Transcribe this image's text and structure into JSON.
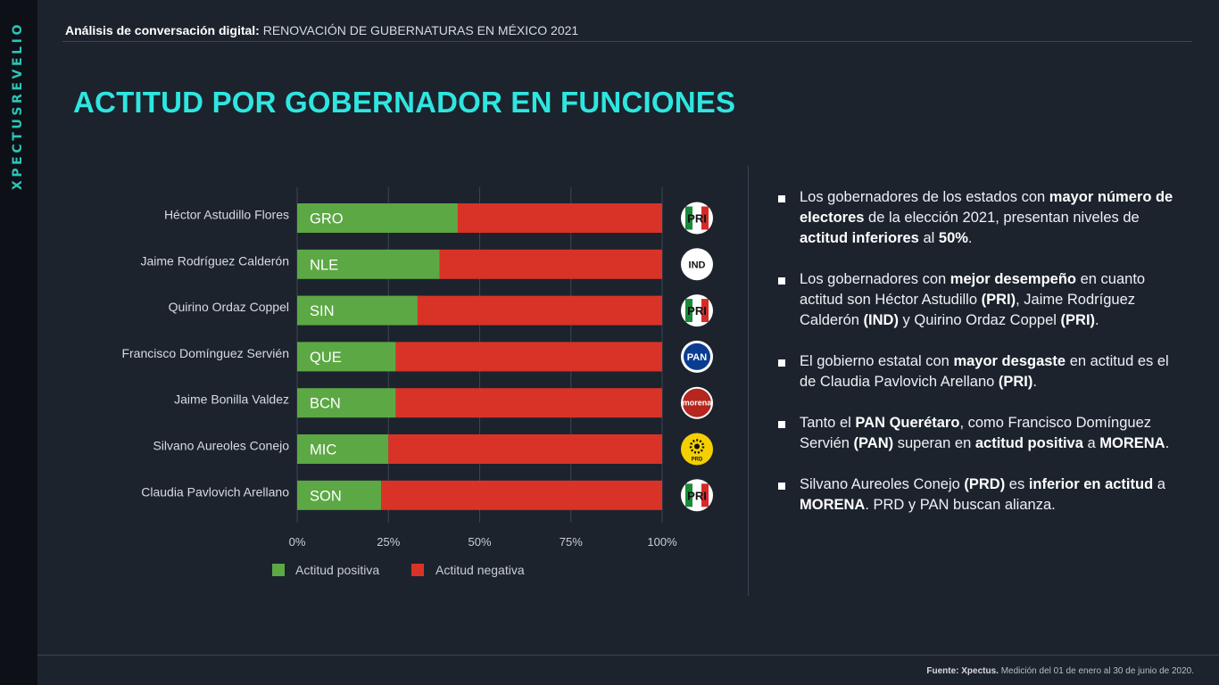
{
  "brand": "XPECTUSREVELIO",
  "header": {
    "bold": "Análisis de conversación digital:",
    "rest": "RENOVACIÓN DE GUBERNATURAS EN MÉXICO 2021"
  },
  "title": "ACTITUD POR GOBERNADOR EN FUNCIONES",
  "chart_data": {
    "type": "bar",
    "orientation": "horizontal",
    "stacked": true,
    "categories": [
      "Héctor Astudillo Flores",
      "Jaime Rodríguez Calderón",
      "Quirino Ordaz Coppel",
      "Francisco Domínguez Servién",
      "Jaime Bonilla Valdez",
      "Silvano Aureoles Conejo",
      "Claudia Pavlovich Arellano"
    ],
    "bar_labels": [
      "GRO",
      "NLE",
      "SIN",
      "QUE",
      "BCN",
      "MIC",
      "SON"
    ],
    "party_badges": [
      "PRI",
      "IND",
      "PRI",
      "PAN",
      "morena",
      "PRD",
      "PRI"
    ],
    "series": [
      {
        "name": "Actitud positiva",
        "color": "#5ca844",
        "values": [
          44,
          39,
          33,
          27,
          27,
          25,
          23
        ]
      },
      {
        "name": "Actitud negativa",
        "color": "#d93327",
        "values": [
          56,
          61,
          67,
          73,
          73,
          75,
          77
        ]
      }
    ],
    "xlim": [
      0,
      100
    ],
    "xticks": [
      "0%",
      "25%",
      "50%",
      "75%",
      "100%"
    ],
    "grid": true,
    "legend_position": "bottom-left"
  },
  "bullets": [
    [
      {
        "t": "Los gobernadores de los estados con "
      },
      {
        "t": "mayor número de electores",
        "b": true
      },
      {
        "t": " de la elección 2021, presentan niveles de "
      },
      {
        "t": "actitud inferiores",
        "b": true
      },
      {
        "t": " al "
      },
      {
        "t": "50%",
        "b": true
      },
      {
        "t": "."
      }
    ],
    [
      {
        "t": "Los gobernadores con "
      },
      {
        "t": "mejor desempeño",
        "b": true
      },
      {
        "t": " en cuanto actitud son Héctor Astudillo "
      },
      {
        "t": "(PRI)",
        "b": true
      },
      {
        "t": ", Jaime Rodríguez Calderón "
      },
      {
        "t": "(IND)",
        "b": true
      },
      {
        "t": " y Quirino Ordaz Coppel "
      },
      {
        "t": "(PRI)",
        "b": true
      },
      {
        "t": "."
      }
    ],
    [
      {
        "t": "El gobierno estatal con "
      },
      {
        "t": "mayor desgaste",
        "b": true
      },
      {
        "t": " en actitud es el de Claudia Pavlovich Arellano "
      },
      {
        "t": "(PRI)",
        "b": true
      },
      {
        "t": "."
      }
    ],
    [
      {
        "t": "Tanto el "
      },
      {
        "t": "PAN Querétaro",
        "b": true
      },
      {
        "t": ", como Francisco Domínguez Servién "
      },
      {
        "t": "(PAN)",
        "b": true
      },
      {
        "t": " superan en "
      },
      {
        "t": "actitud positiva",
        "b": true
      },
      {
        "t": " a "
      },
      {
        "t": "MORENA",
        "b": true
      },
      {
        "t": "."
      }
    ],
    [
      {
        "t": "Silvano Aureoles Conejo "
      },
      {
        "t": "(PRD)",
        "b": true
      },
      {
        "t": " es "
      },
      {
        "t": "inferior en actitud",
        "b": true
      },
      {
        "t": " a "
      },
      {
        "t": "MORENA",
        "b": true
      },
      {
        "t": ". PRD y PAN buscan alianza."
      }
    ]
  ],
  "footer": {
    "bold": "Fuente: Xpectus.",
    "rest": " Medición del 01 de enero al 30 de junio de 2020."
  }
}
